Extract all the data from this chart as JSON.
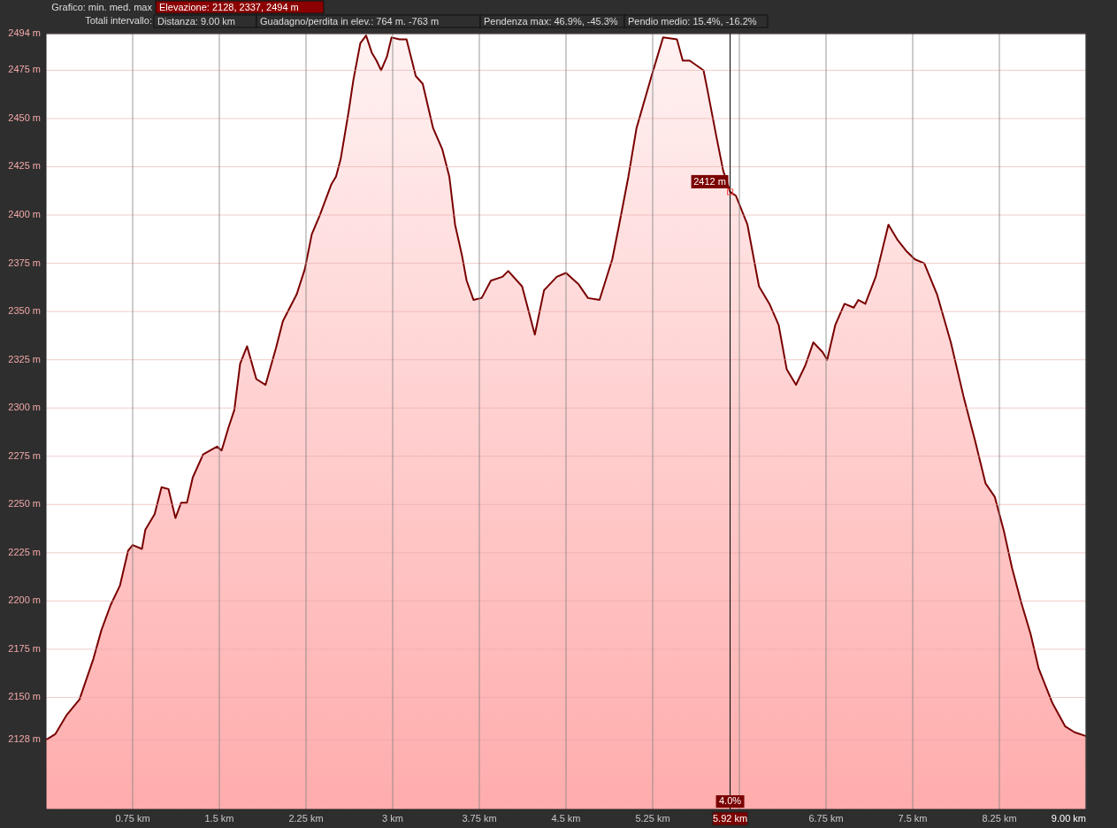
{
  "chart_data": {
    "type": "area",
    "title": "Grafico: min. med. max",
    "subtitle": "Totali intervallo:",
    "annotations": [
      "Elevazione: 2128, 2337, 2494 m",
      "Distanza: 9.00 km",
      "Guadagno/perdita in elev.: 764 m. -763 m",
      "Pendenza max: 46.9%, -45.3%",
      "Pendio medio: 15.4%, -16.2%",
      {
        "text": "2412 m",
        "x": 5.92,
        "y": 2412
      },
      {
        "text": "4.0%",
        "x": 5.92
      }
    ],
    "x": [
      0,
      0.08,
      0.18,
      0.29,
      0.41,
      0.48,
      0.56,
      0.64,
      0.71,
      0.75,
      0.83,
      0.86,
      0.94,
      1.0,
      1.06,
      1.12,
      1.17,
      1.22,
      1.27,
      1.36,
      1.48,
      1.52,
      1.58,
      1.63,
      1.68,
      1.74,
      1.82,
      1.9,
      1.99,
      2.05,
      2.17,
      2.24,
      2.3,
      2.37,
      2.47,
      2.51,
      2.55,
      2.62,
      2.66,
      2.72,
      2.77,
      2.82,
      2.86,
      2.9,
      2.95,
      2.99,
      3.06,
      3.12,
      3.2,
      3.26,
      3.35,
      3.43,
      3.49,
      3.54,
      3.6,
      3.64,
      3.7,
      3.77,
      3.85,
      3.95,
      4.0,
      4.12,
      4.16,
      4.23,
      4.31,
      4.42,
      4.5,
      4.61,
      4.69,
      4.79,
      4.9,
      4.96,
      5.04,
      5.11,
      5.24,
      5.34,
      5.46,
      5.51,
      5.57,
      5.69,
      5.72,
      5.8,
      5.86,
      5.92,
      5.97,
      6.07,
      6.17,
      6.26,
      6.34,
      6.41,
      6.49,
      6.57,
      6.64,
      6.72,
      6.76,
      6.83,
      6.91,
      6.99,
      7.03,
      7.09,
      7.18,
      7.29,
      7.37,
      7.45,
      7.52,
      7.6,
      7.71,
      7.83,
      7.94,
      8.04,
      8.13,
      8.21,
      8.29,
      8.36,
      8.44,
      8.52,
      8.59,
      8.71,
      8.82,
      8.9,
      9.0
    ],
    "series": [
      {
        "color": "#7a0000",
        "values": [
          2128,
          2131,
          2141,
          2149,
          2170,
          2185,
          2198,
          2208,
          2226,
          2229,
          2227,
          2237,
          2245,
          2259,
          2258,
          2243,
          2251,
          2251,
          2264,
          2276,
          2280,
          2278,
          2290,
          2299,
          2323,
          2332,
          2315,
          2312,
          2331,
          2345,
          2359,
          2372,
          2390,
          2400,
          2416,
          2420,
          2429,
          2454,
          2470,
          2489,
          2493,
          2484,
          2480,
          2475,
          2482,
          2492,
          2491,
          2491,
          2472,
          2468,
          2445,
          2434,
          2420,
          2395,
          2379,
          2366,
          2356,
          2357,
          2366,
          2368,
          2371,
          2363,
          2354,
          2338,
          2361,
          2368,
          2370,
          2364,
          2357,
          2356,
          2377,
          2395,
          2420,
          2445,
          2472,
          2492,
          2491,
          2480,
          2480,
          2475,
          2466,
          2441,
          2423,
          2412,
          2410,
          2395,
          2363,
          2354,
          2343,
          2320,
          2312,
          2322,
          2334,
          2329,
          2325,
          2343,
          2354,
          2352,
          2356,
          2354,
          2368,
          2395,
          2387,
          2381,
          2377,
          2375,
          2359,
          2334,
          2306,
          2283,
          2261,
          2254,
          2236,
          2217,
          2199,
          2183,
          2165,
          2147,
          2135,
          2132,
          2130
        ]
      }
    ],
    "xlim": [
      0,
      9
    ],
    "ylim": [
      2092,
      2494
    ],
    "xticks": [
      {
        "value": 0.75,
        "label": "0.75 km"
      },
      {
        "value": 1.5,
        "label": "1.5 km"
      },
      {
        "value": 2.25,
        "label": "2.25 km"
      },
      {
        "value": 3,
        "label": "3 km"
      },
      {
        "value": 3.75,
        "label": "3.75 km"
      },
      {
        "value": 4.5,
        "label": "4.5 km"
      },
      {
        "value": 5.25,
        "label": "5.25 km"
      },
      {
        "value": 6,
        "label": null
      },
      {
        "value": 6.75,
        "label": "6.75 km"
      },
      {
        "value": 7.5,
        "label": "7.5 km"
      },
      {
        "value": 8.25,
        "label": "8.25 km"
      },
      {
        "value": 9,
        "label": "9.00 km"
      }
    ],
    "yticks": [
      {
        "value": 2128,
        "label": "2128 m"
      },
      {
        "value": 2150,
        "label": "2150 m"
      },
      {
        "value": 2175,
        "label": "2175 m"
      },
      {
        "value": 2200,
        "label": "2200 m"
      },
      {
        "value": 2225,
        "label": "2225 m"
      },
      {
        "value": 2250,
        "label": "2250 m"
      },
      {
        "value": 2275,
        "label": "2275 m"
      },
      {
        "value": 2300,
        "label": "2300 m"
      },
      {
        "value": 2325,
        "label": "2325 m"
      },
      {
        "value": 2350,
        "label": "2350 m"
      },
      {
        "value": 2375,
        "label": "2375 m"
      },
      {
        "value": 2400,
        "label": "2400 m"
      },
      {
        "value": 2425,
        "label": "2425 m"
      },
      {
        "value": 2450,
        "label": "2450 m"
      },
      {
        "value": 2475,
        "label": "2475 m"
      },
      {
        "value": 2494,
        "label": "2494 m"
      }
    ],
    "grid": true,
    "ref_lines": [
      {
        "axis": "x",
        "value": 5.92,
        "label": "5.92 km",
        "color": "#000000"
      }
    ]
  }
}
